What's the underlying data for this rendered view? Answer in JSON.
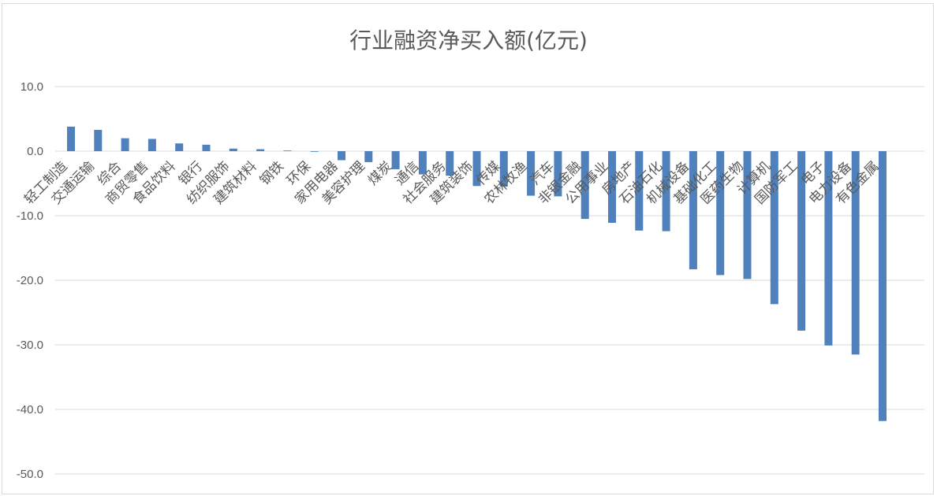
{
  "chart_data": {
    "type": "bar",
    "title": "行业融资净买入额(亿元)",
    "xlabel": "",
    "ylabel": "",
    "ylim": [
      -50,
      10
    ],
    "y_ticks": [
      "10.0",
      "0.0",
      "-10.0",
      "-20.0",
      "-30.0",
      "-40.0",
      "-50.0"
    ],
    "grid": true,
    "bar_color": "#4f81bd",
    "categories": [
      "轻工制造",
      "交通运输",
      "综合",
      "商贸零售",
      "食品饮料",
      "银行",
      "纺织服饰",
      "建筑材料",
      "钢铁",
      "环保",
      "家用电器",
      "美容护理",
      "煤炭",
      "通信",
      "社会服务",
      "建筑装饰",
      "传媒",
      "农林牧渔",
      "汽车",
      "非银金融",
      "公用事业",
      "房地产",
      "石油石化",
      "机械设备",
      "基础化工",
      "医药生物",
      "计算机",
      "国防军工",
      "电子",
      "电力设备",
      "有色金属"
    ],
    "values": [
      3.8,
      3.3,
      2.0,
      1.9,
      1.2,
      1.0,
      0.4,
      0.3,
      0.1,
      -0.1,
      -1.4,
      -1.7,
      -2.8,
      -3.6,
      -3.8,
      -5.4,
      -5.5,
      -6.9,
      -7.0,
      -10.5,
      -11.1,
      -12.3,
      -12.4,
      -18.3,
      -19.2,
      -19.8,
      -23.7,
      -27.8,
      -30.1,
      -31.5,
      -41.8
    ]
  }
}
